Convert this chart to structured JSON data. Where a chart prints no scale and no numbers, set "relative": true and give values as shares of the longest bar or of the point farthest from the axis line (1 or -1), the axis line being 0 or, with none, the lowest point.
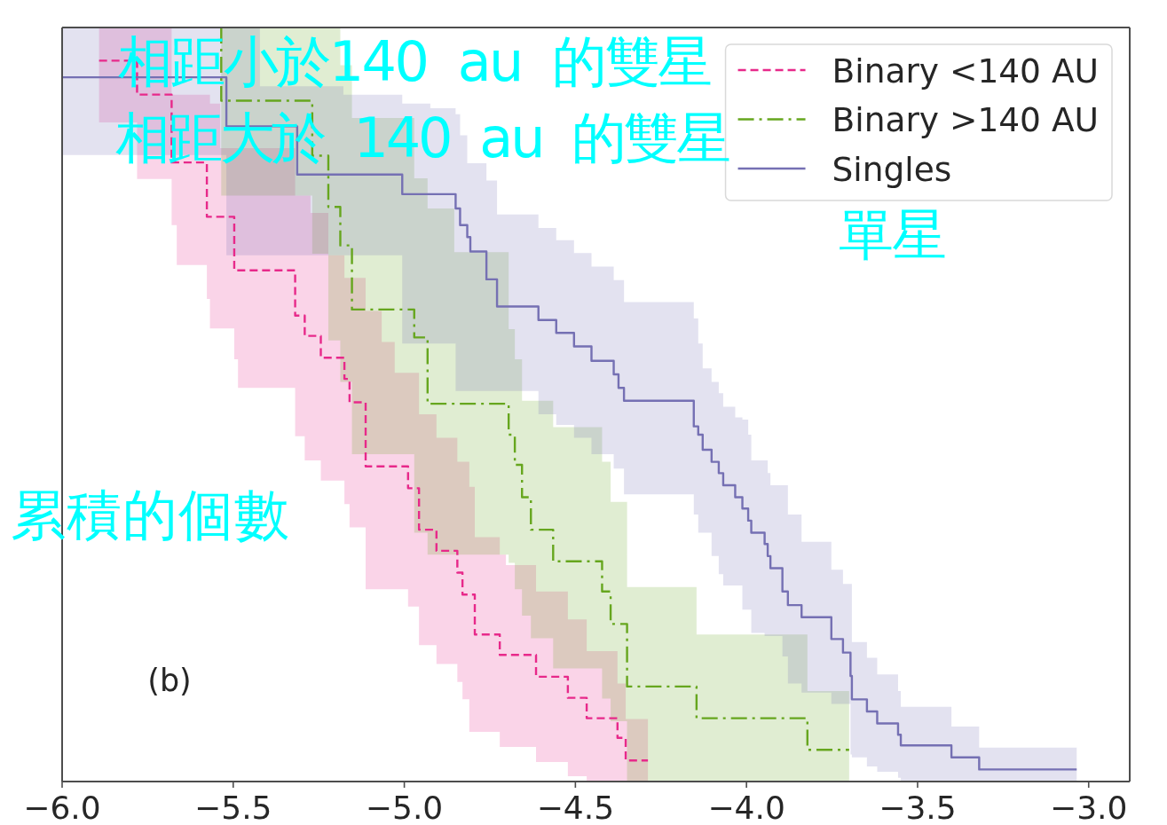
{
  "chart_data": {
    "type": "step",
    "relative": true,
    "ylabel": "累積的個數",
    "xlim": [
      -6.0,
      -2.88
    ],
    "xticks": [
      {
        "value": -6.0,
        "label": "−6.0"
      },
      {
        "value": -5.5,
        "label": "−5.5"
      },
      {
        "value": -5.0,
        "label": "−5.0"
      },
      {
        "value": -4.5,
        "label": "−4.5"
      },
      {
        "value": -4.0,
        "label": "−4.0"
      },
      {
        "value": -3.5,
        "label": "−3.5"
      },
      {
        "value": -3.0,
        "label": "−3.0"
      }
    ],
    "legend": "top right",
    "annotations": [
      "(b)",
      "相距小於140  au  的雙星",
      "相距大於  140  au  的雙星",
      "單星"
    ],
    "series": [
      {
        "name": "Binary <140 AU",
        "color": "#e7298a",
        "line_style": "dashed",
        "x": [
          -5.892,
          -5.781,
          -5.68,
          -5.665,
          -5.577,
          -5.568,
          -5.538,
          -5.497,
          -5.486,
          -5.319,
          -5.291,
          -5.274,
          -5.244,
          -5.222,
          -5.175,
          -5.16,
          -5.113,
          -5.066,
          -5.028,
          -4.989,
          -4.957,
          -4.906,
          -4.845,
          -4.83,
          -4.81,
          -4.794,
          -4.721,
          -4.703,
          -4.615,
          -4.522,
          -4.467,
          -4.377,
          -4.353,
          -4.288
        ],
        "values": [
          0.956,
          0.911,
          0.821,
          0.821,
          0.749,
          0.749,
          0.749,
          0.678,
          0.678,
          0.618,
          0.591,
          0.591,
          0.562,
          0.562,
          0.534,
          0.503,
          0.418,
          0.418,
          0.418,
          0.389,
          0.334,
          0.306,
          0.277,
          0.248,
          0.248,
          0.195,
          0.168,
          0.168,
          0.139,
          0.111,
          0.084,
          0.058,
          0.028,
          0.028
        ],
        "lower": [
          0.874,
          0.799,
          0.738,
          0.685,
          0.64,
          0.601,
          0.601,
          0.56,
          0.522,
          0.458,
          0.426,
          0.426,
          0.399,
          0.399,
          0.368,
          0.337,
          0.255,
          0.255,
          0.255,
          0.232,
          0.181,
          0.156,
          0.132,
          0.109,
          0.066,
          0.066,
          0.046,
          0.046,
          0.026,
          0.007,
          0.0,
          0.0,
          0.0,
          0.0
        ],
        "upper": [
          1.0,
          1.0,
          0.911,
          0.911,
          0.911,
          0.899,
          0.84,
          0.84,
          0.84,
          0.777,
          0.777,
          0.754,
          0.754,
          0.698,
          0.668,
          0.668,
          0.624,
          0.583,
          0.542,
          0.542,
          0.487,
          0.456,
          0.424,
          0.424,
          0.391,
          0.324,
          0.301,
          0.287,
          0.252,
          0.215,
          0.173,
          0.13,
          0.083,
          0.083
        ]
      },
      {
        "name": "Binary >140 AU",
        "color": "#66a61e",
        "line_style": "dashdot",
        "x": [
          -5.535,
          -5.535,
          -5.269,
          -5.222,
          -5.187,
          -5.153,
          -4.971,
          -4.932,
          -4.854,
          -4.695,
          -4.677,
          -4.656,
          -4.63,
          -4.565,
          -4.422,
          -4.397,
          -4.349,
          -4.146,
          -3.822,
          -3.7
        ],
        "values": [
          1.0,
          0.903,
          0.83,
          0.762,
          0.711,
          0.626,
          0.589,
          0.501,
          0.501,
          0.46,
          0.42,
          0.377,
          0.334,
          0.292,
          0.252,
          0.209,
          0.126,
          0.084,
          0.042,
          0.042
        ],
        "lower": [
          0.777,
          0.777,
          0.7,
          0.585,
          0.53,
          0.434,
          0.33,
          0.301,
          0.301,
          0.29,
          0.255,
          0.22,
          0.19,
          0.15,
          0.11,
          0.08,
          0.0,
          0.0,
          0.0,
          0.0
        ],
        "upper": [
          1.0,
          1.0,
          1.0,
          1.0,
          0.95,
          0.88,
          0.8,
          0.76,
          0.702,
          0.6,
          0.56,
          0.505,
          0.505,
          0.47,
          0.424,
          0.371,
          0.258,
          0.195,
          0.12,
          0.12
        ]
      },
      {
        "name": "Singles",
        "color": "#7570b3",
        "line_style": "solid",
        "x": [
          -6.0,
          -5.52,
          -5.422,
          -5.313,
          -5.178,
          -5.006,
          -4.924,
          -4.85,
          -4.837,
          -4.816,
          -4.807,
          -4.76,
          -4.729,
          -4.608,
          -4.556,
          -4.504,
          -4.453,
          -4.388,
          -4.374,
          -4.358,
          -4.154,
          -4.141,
          -4.128,
          -4.102,
          -4.081,
          -4.068,
          -4.033,
          -4.012,
          -3.995,
          -3.986,
          -3.947,
          -3.938,
          -3.93,
          -3.895,
          -3.879,
          -3.839,
          -3.752,
          -3.718,
          -3.696,
          -3.692,
          -3.648,
          -3.618,
          -3.557,
          -3.549,
          -3.401,
          -3.32,
          -3.035
        ],
        "values": [
          0.934,
          0.869,
          0.869,
          0.805,
          0.805,
          0.779,
          0.779,
          0.76,
          0.738,
          0.722,
          0.703,
          0.666,
          0.63,
          0.612,
          0.595,
          0.577,
          0.558,
          0.54,
          0.522,
          0.505,
          0.471,
          0.46,
          0.44,
          0.424,
          0.409,
          0.393,
          0.377,
          0.362,
          0.346,
          0.33,
          0.315,
          0.299,
          0.283,
          0.252,
          0.234,
          0.218,
          0.189,
          0.171,
          0.14,
          0.109,
          0.093,
          0.077,
          0.062,
          0.048,
          0.032,
          0.016,
          0.016
        ],
        "lower": [
          0.831,
          0.698,
          0.698,
          0.698,
          0.698,
          0.581,
          0.581,
          0.518,
          0.518,
          0.518,
          0.518,
          0.518,
          0.518,
          0.487,
          0.473,
          0.456,
          0.434,
          0.415,
          0.415,
          0.381,
          0.354,
          0.33,
          0.33,
          0.299,
          0.275,
          0.26,
          0.26,
          0.228,
          0.228,
          0.197,
          0.193,
          0.193,
          0.193,
          0.166,
          0.13,
          0.118,
          0.103,
          0.103,
          0.036,
          0.032,
          0.02,
          0.013,
          0.005,
          0.0,
          0.0,
          0.0,
          0.0
        ],
        "upper": [
          1.0,
          1.0,
          0.922,
          0.922,
          0.911,
          0.899,
          0.893,
          0.885,
          0.857,
          0.82,
          0.82,
          0.797,
          0.752,
          0.734,
          0.718,
          0.701,
          0.683,
          0.665,
          0.665,
          0.636,
          0.614,
          0.581,
          0.548,
          0.53,
          0.515,
          0.497,
          0.483,
          0.48,
          0.46,
          0.426,
          0.426,
          0.409,
          0.393,
          0.393,
          0.354,
          0.318,
          0.281,
          0.262,
          0.262,
          0.185,
          0.164,
          0.142,
          0.12,
          0.099,
          0.073,
          0.045,
          0.045
        ]
      }
    ]
  }
}
